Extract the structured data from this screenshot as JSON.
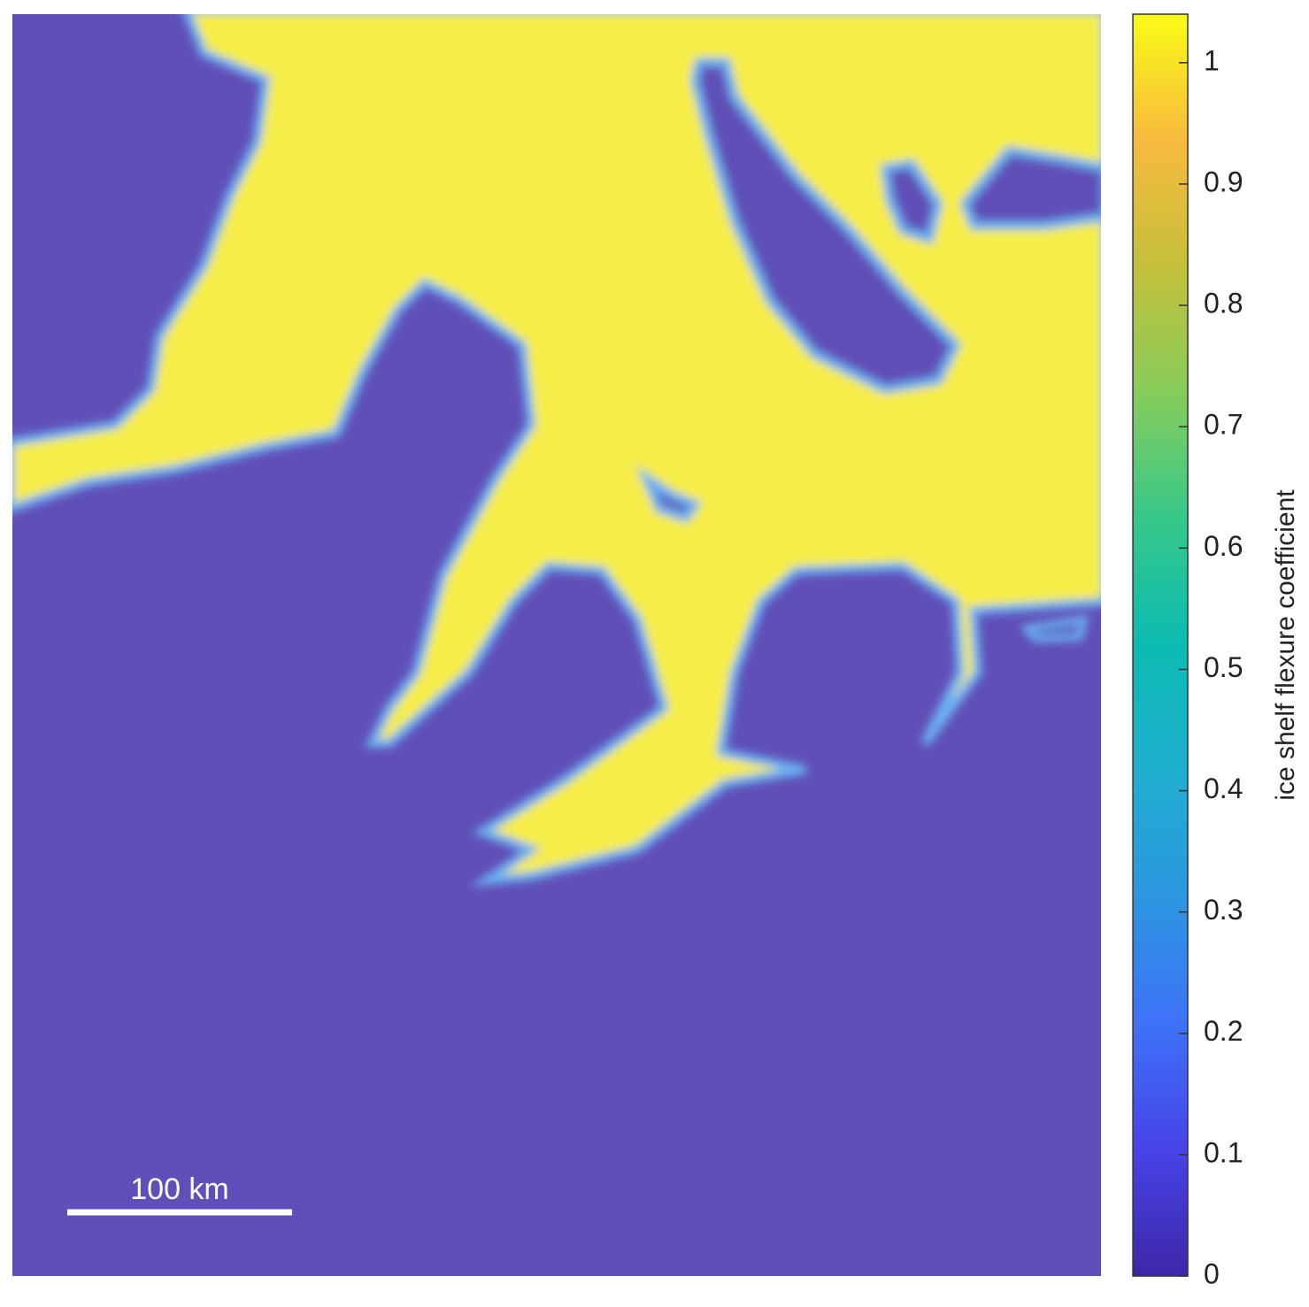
{
  "map": {
    "scale_bar": {
      "label": "100 km"
    },
    "colorbar": {
      "label": "ice shelf flexure coefficient",
      "lim": [
        0,
        1.04
      ],
      "ticks": [
        0,
        0.1,
        0.2,
        0.3,
        0.4,
        0.5,
        0.6,
        0.7,
        0.8,
        0.9,
        1
      ],
      "colormap": [
        "#3e26a8",
        "#4743e8",
        "#3e72f9",
        "#2c96e0",
        "#1fafd0",
        "#0bbbb1",
        "#36c88a",
        "#86cc5b",
        "#c4c03a",
        "#f8ba3e",
        "#f9fb15"
      ]
    }
  }
}
